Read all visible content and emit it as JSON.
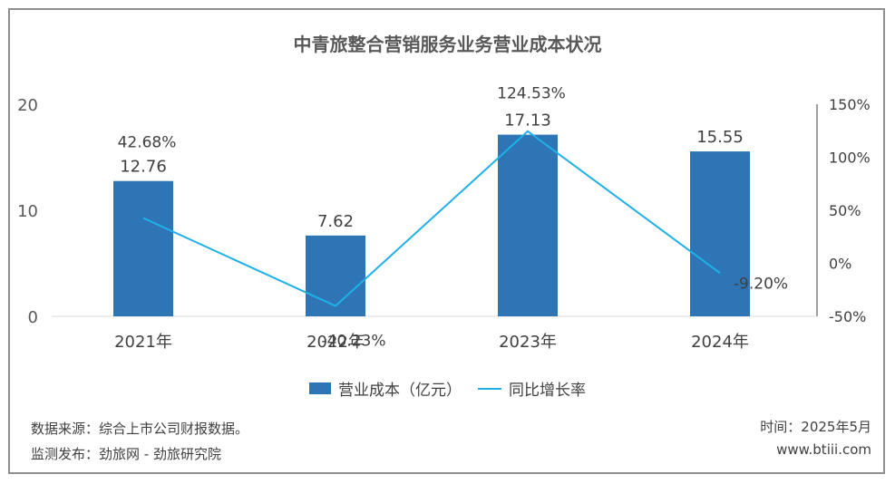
{
  "title": "中青旅整合营销服务业务营业成本状况",
  "chart_data": {
    "type": "bar",
    "categories": [
      "2021年",
      "2022年",
      "2023年",
      "2024年"
    ],
    "series": [
      {
        "name": "营业成本（亿元）",
        "type": "bar",
        "axis": "left",
        "values": [
          12.76,
          7.62,
          17.13,
          15.55
        ],
        "labels": [
          "12.76",
          "7.62",
          "17.13",
          "15.55"
        ]
      },
      {
        "name": "同比增长率",
        "type": "line",
        "axis": "right",
        "values": [
          42.68,
          -40.23,
          124.53,
          -9.2
        ],
        "labels": [
          "42.68%",
          "-40.23%",
          "124.53%",
          "-9.20%"
        ]
      }
    ],
    "y_left": {
      "min": 0,
      "max": 20,
      "ticks": [
        "0",
        "10",
        "20"
      ]
    },
    "y_right": {
      "min": -50,
      "max": 150,
      "ticks": [
        "-50%",
        "0%",
        "50%",
        "100%",
        "150%"
      ]
    },
    "grid": false,
    "legend_position": "bottom"
  },
  "colors": {
    "bar": "#2e75b6",
    "line": "#1fb1e6"
  },
  "footer": {
    "source": "数据来源：综合上市公司财报数据。",
    "publisher": "监测发布：劲旅网 - 劲旅研究院",
    "time": "时间：2025年5月",
    "site": "www.btiii.com"
  }
}
